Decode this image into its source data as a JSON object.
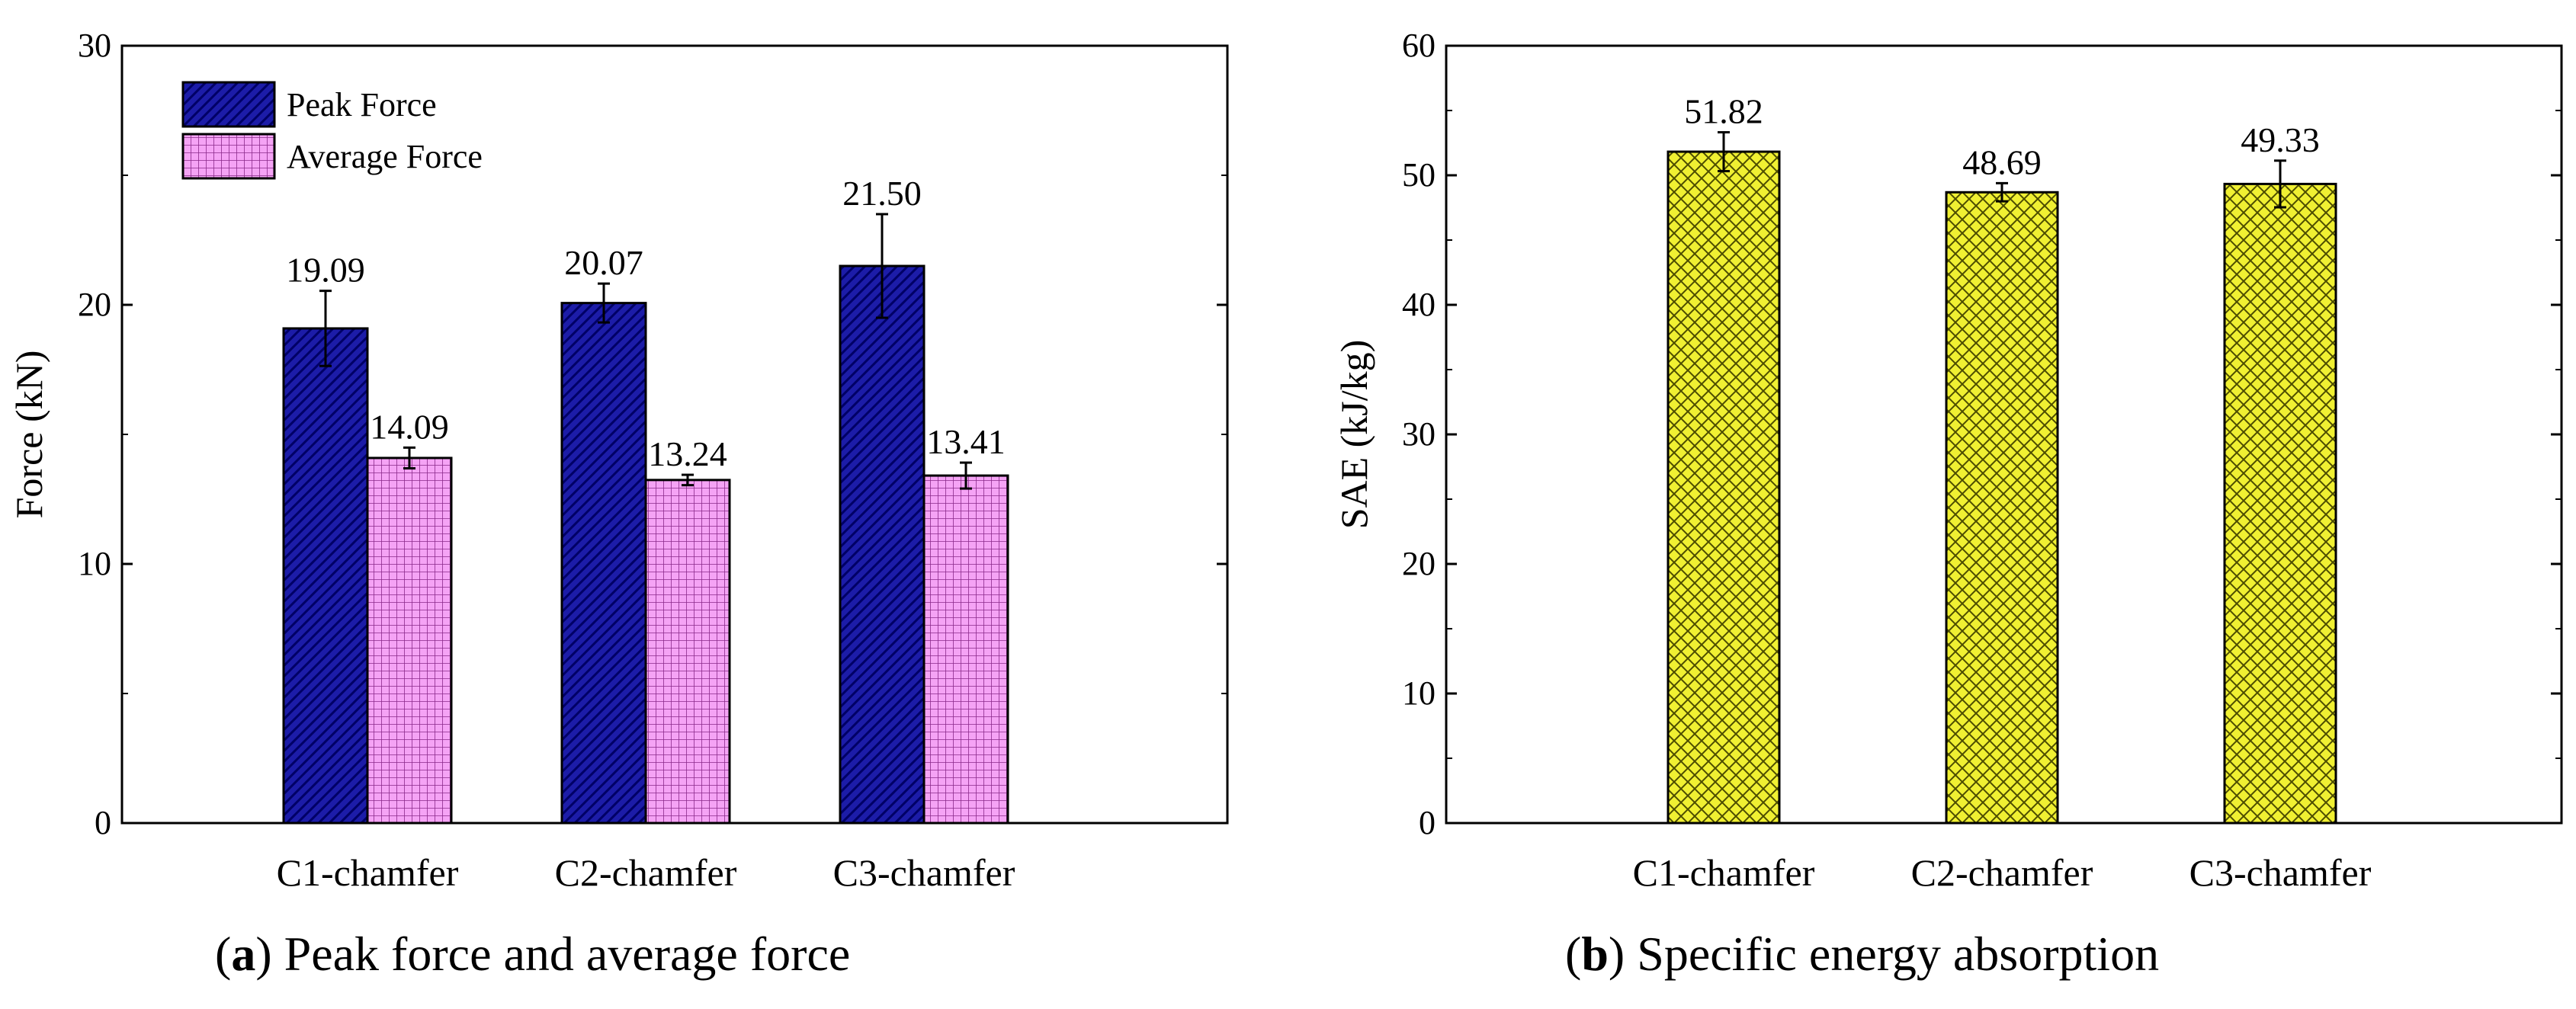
{
  "chart_data": [
    {
      "type": "bar",
      "title": "",
      "xlabel": "",
      "ylabel": "Force (kN)",
      "ylim": [
        0,
        30
      ],
      "yticks": [
        0,
        10,
        20,
        30
      ],
      "categories": [
        "C1-chamfer",
        "C2-chamfer",
        "C3-chamfer"
      ],
      "series": [
        {
          "name": "Peak Force",
          "values": [
            19.09,
            20.07,
            21.5
          ],
          "labels": [
            "19.09",
            "20.07",
            "21.50"
          ],
          "error": [
            1.45,
            0.75,
            2.0
          ],
          "color": "#1c1ca8",
          "pattern": "diagonal-hatch"
        },
        {
          "name": "Average Force",
          "values": [
            14.09,
            13.24,
            13.41
          ],
          "labels": [
            "14.09",
            "13.24",
            "13.41"
          ],
          "error": [
            0.4,
            0.2,
            0.5
          ],
          "color": "#f28ef2",
          "pattern": "grid"
        }
      ],
      "legend": "top-left",
      "caption": {
        "letter": "a",
        "text": "Peak force and average force"
      }
    },
    {
      "type": "bar",
      "title": "",
      "xlabel": "",
      "ylabel": "SAE (kJ/kg)",
      "ylim": [
        0,
        60
      ],
      "yticks": [
        0,
        10,
        20,
        30,
        40,
        50,
        60
      ],
      "categories": [
        "C1-chamfer",
        "C2-chamfer",
        "C3-chamfer"
      ],
      "series": [
        {
          "name": "SAE",
          "values": [
            51.82,
            48.69,
            49.33
          ],
          "labels": [
            "51.82",
            "48.69",
            "49.33"
          ],
          "error": [
            1.5,
            0.7,
            1.8
          ],
          "color": "#f0f032",
          "pattern": "crosshatch"
        }
      ],
      "legend": "none",
      "caption": {
        "letter": "b",
        "text": "Specific energy absorption"
      }
    }
  ]
}
